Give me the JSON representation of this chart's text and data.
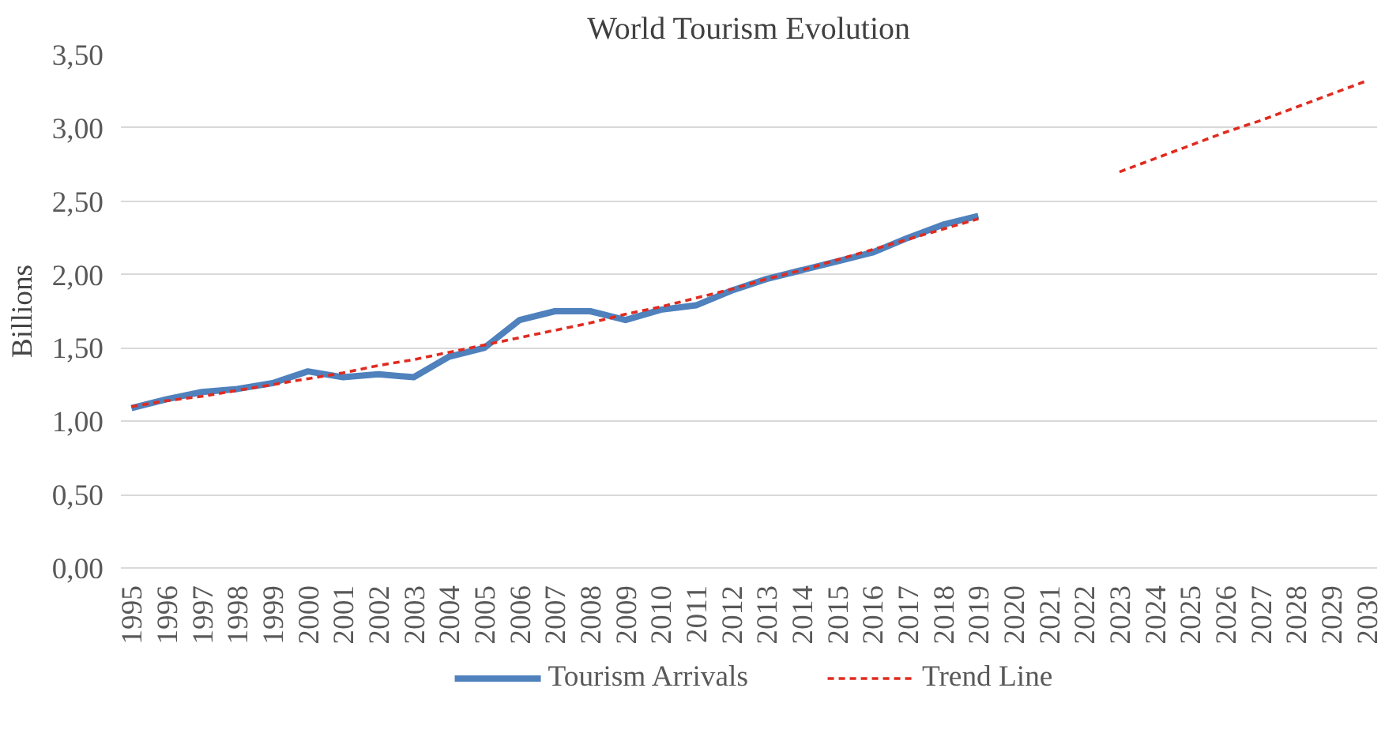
{
  "chart_data": {
    "type": "line",
    "title": "World Tourism Evolution",
    "ylabel": "Billions",
    "categories": [
      "1995",
      "1996",
      "1997",
      "1998",
      "1999",
      "2000",
      "2001",
      "2002",
      "2003",
      "2004",
      "2005",
      "2006",
      "2007",
      "2008",
      "2009",
      "2010",
      "2011",
      "2012",
      "2013",
      "2014",
      "2015",
      "2016",
      "2017",
      "2018",
      "2019",
      "2020",
      "2021",
      "2022",
      "2023",
      "2024",
      "2025",
      "2026",
      "2027",
      "2028",
      "2029",
      "2030"
    ],
    "series": [
      {
        "name": "Tourism Arrivals",
        "color": "#4f81bd",
        "line_style": "solid",
        "values": [
          1.09,
          1.15,
          1.2,
          1.22,
          1.26,
          1.34,
          1.3,
          1.32,
          1.3,
          1.44,
          1.5,
          1.69,
          1.75,
          1.75,
          1.69,
          1.76,
          1.79,
          1.89,
          1.97,
          2.03,
          2.09,
          2.15,
          2.25,
          2.34,
          2.4,
          null,
          null,
          null,
          null,
          null,
          null,
          null,
          null,
          null,
          null,
          null
        ]
      },
      {
        "name": "Trend Line",
        "color": "#e02b20",
        "line_style": "dashed",
        "values": [
          1.1,
          1.14,
          1.17,
          1.21,
          1.25,
          1.29,
          1.33,
          1.38,
          1.42,
          1.47,
          1.52,
          1.57,
          1.62,
          1.67,
          1.73,
          1.78,
          1.84,
          1.9,
          1.97,
          2.03,
          2.1,
          2.17,
          2.24,
          2.31,
          2.38,
          null,
          null,
          null,
          2.7,
          2.79,
          2.88,
          2.97,
          3.05,
          3.14,
          3.23,
          3.32
        ]
      }
    ],
    "ylim": [
      0,
      3.5
    ],
    "yticks": [
      {
        "value": 0,
        "label": "0,00"
      },
      {
        "value": 0.5,
        "label": "0,50"
      },
      {
        "value": 1,
        "label": "1,00"
      },
      {
        "value": 1.5,
        "label": "1,50"
      },
      {
        "value": 2,
        "label": "2,00"
      },
      {
        "value": 2.5,
        "label": "2,50"
      },
      {
        "value": 3,
        "label": "3,00"
      },
      {
        "value": 3.5,
        "label": "3,50"
      }
    ],
    "grid": "y",
    "legend": "bottom",
    "marker": "none"
  }
}
